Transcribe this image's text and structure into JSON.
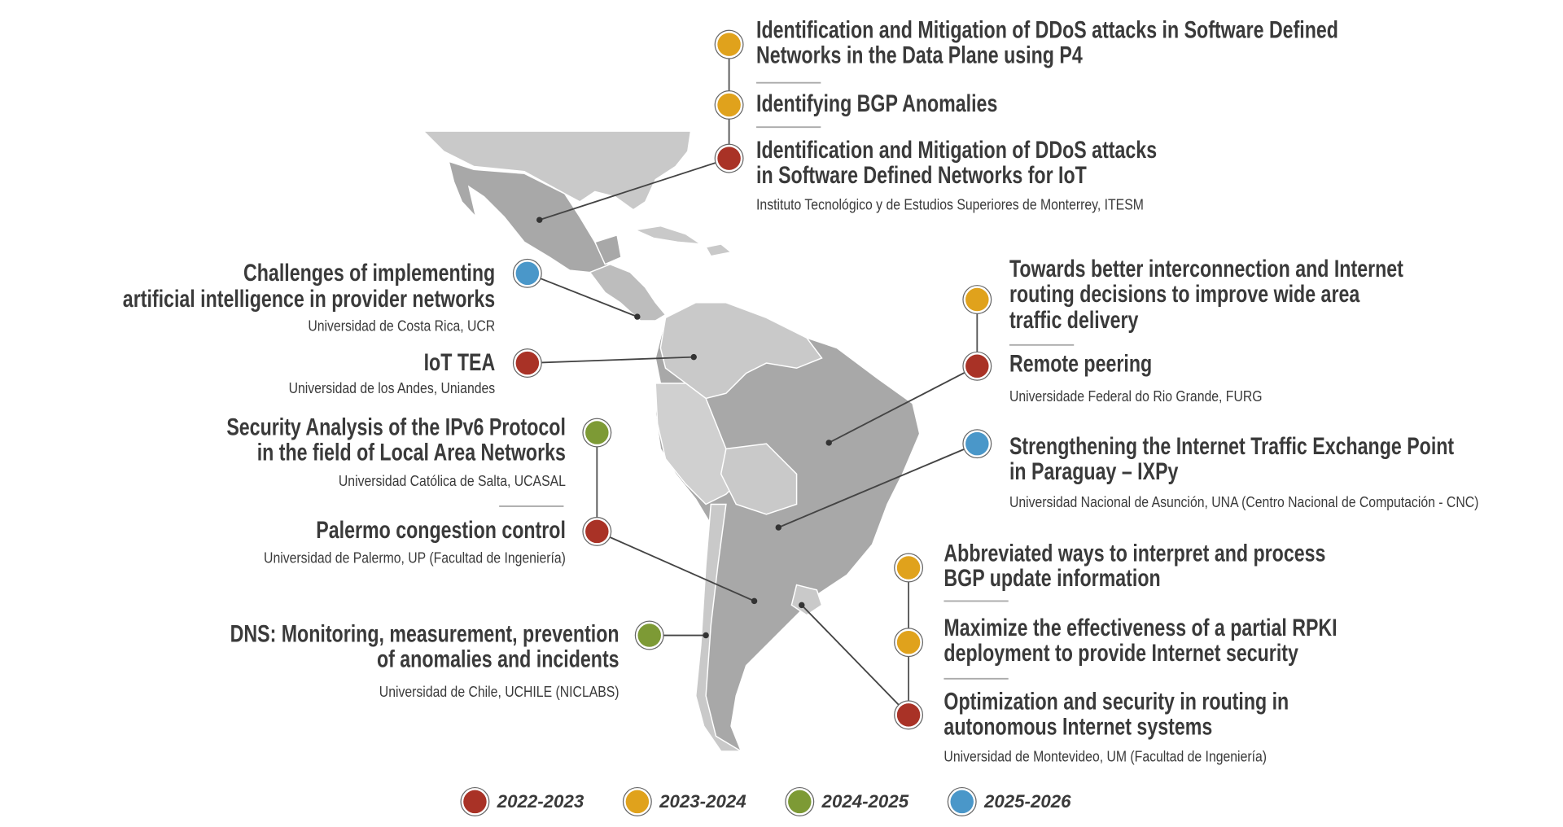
{
  "groups": [
    {
      "institution": "Instituto Tecnológico y de Estudios Superiores de Monterrey, ITESM",
      "projects": [
        {
          "title": [
            "Identification and Mitigation of DDoS attacks in Software Defined",
            "Networks in the Data Plane using P4"
          ],
          "color": "#e0a21c"
        },
        {
          "title": [
            "Identifying BGP Anomalies"
          ],
          "color": "#e0a21c"
        },
        {
          "title": [
            "Identification and Mitigation of DDoS attacks",
            "in Software Defined Networks for IoT"
          ],
          "color": "#a93226"
        }
      ]
    },
    {
      "institution": "Universidad de Costa Rica, UCR",
      "projects": [
        {
          "title": [
            "Challenges of implementing",
            "artificial intelligence in provider networks"
          ],
          "color": "#4a97c9"
        }
      ]
    },
    {
      "institution": "Universidad de los Andes, Uniandes",
      "projects": [
        {
          "title": [
            "IoT TEA"
          ],
          "color": "#a93226"
        }
      ]
    },
    {
      "institution": "Universidad Católica de Salta, UCASAL",
      "projects": [
        {
          "title": [
            "Security Analysis of the IPv6 Protocol",
            "in the field of Local Area Networks"
          ],
          "color": "#7d9a35"
        }
      ]
    },
    {
      "institution": "Universidad de Palermo, UP (Facultad de Ingeniería)",
      "projects": [
        {
          "title": [
            "Palermo congestion control"
          ],
          "color": "#a93226"
        }
      ]
    },
    {
      "institution": "Universidad de Chile, UCHILE (NICLABS)",
      "projects": [
        {
          "title": [
            "DNS: Monitoring, measurement, prevention",
            "of anomalies and incidents"
          ],
          "color": "#7d9a35"
        }
      ]
    },
    {
      "institution": "Universidade Federal do Rio Grande, FURG",
      "projects": [
        {
          "title": [
            "Towards better interconnection and Internet",
            "routing decisions to improve wide area",
            "traffic delivery"
          ],
          "color": "#e0a21c"
        },
        {
          "title": [
            "Remote peering"
          ],
          "color": "#a93226"
        }
      ]
    },
    {
      "institution": "Universidad Nacional de Asunción, UNA (Centro Nacional de Computación - CNC)",
      "projects": [
        {
          "title": [
            "Strengthening the Internet Traffic Exchange Point",
            "in Paraguay – IXPy"
          ],
          "color": "#4a97c9"
        }
      ]
    },
    {
      "institution": "Universidad de Montevideo, UM (Facultad de Ingeniería)",
      "projects": [
        {
          "title": [
            "Abbreviated ways to interpret and process",
            "BGP update information"
          ],
          "color": "#e0a21c"
        },
        {
          "title": [
            "Maximize the effectiveness of a partial RPKI",
            "deployment to provide Internet security"
          ],
          "color": "#e0a21c"
        },
        {
          "title": [
            "Optimization and security in routing in",
            "autonomous Internet systems"
          ],
          "color": "#a93226"
        }
      ]
    }
  ],
  "legend": [
    {
      "label": "2022-2023",
      "color": "#a93226"
    },
    {
      "label": "2023-2024",
      "color": "#e0a21c"
    },
    {
      "label": "2024-2025",
      "color": "#7d9a35"
    },
    {
      "label": "2025-2026",
      "color": "#4a97c9"
    }
  ]
}
